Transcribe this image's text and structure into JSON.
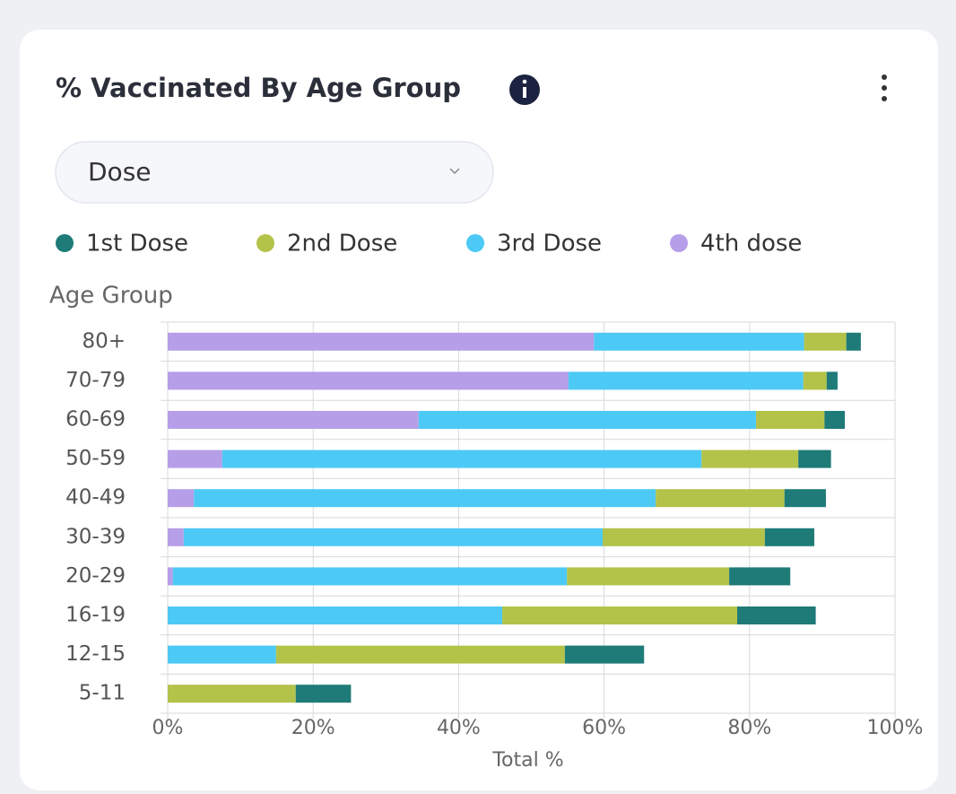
{
  "card": {
    "title": "% Vaccinated By Age Group",
    "dropdown": "Dose"
  },
  "chart_data": {
    "type": "bar",
    "orientation": "horizontal",
    "stacked": true,
    "y_axis_title": "Age Group",
    "x_axis_title": "Total %",
    "categories": [
      "80+",
      "70-79",
      "60-69",
      "50-59",
      "40-49",
      "30-39",
      "20-29",
      "16-19",
      "12-15",
      "5-11"
    ],
    "series": [
      {
        "name": "1st Dose",
        "color": "#1e7b78",
        "values": [
          2.0,
          1.5,
          2.8,
          4.5,
          5.7,
          6.8,
          8.4,
          10.8,
          10.9,
          7.6
        ]
      },
      {
        "name": "2nd Dose",
        "color": "#b3c34a",
        "values": [
          5.8,
          3.2,
          9.4,
          13.3,
          17.7,
          22.3,
          22.3,
          32.3,
          39.7,
          17.6
        ]
      },
      {
        "name": "3rd Dose",
        "color": "#4dc9f6",
        "values": [
          28.9,
          32.3,
          46.4,
          65.9,
          63.5,
          57.6,
          54.2,
          46.0,
          14.9,
          0
        ]
      },
      {
        "name": "4th dose",
        "color": "#b69ee8",
        "values": [
          58.6,
          55.1,
          34.5,
          7.5,
          3.6,
          2.2,
          0.7,
          0,
          0,
          0
        ]
      }
    ],
    "xlim": [
      0,
      100
    ],
    "xticks": [
      {
        "value": 0,
        "label": "0%"
      },
      {
        "value": 20,
        "label": "20%"
      },
      {
        "value": 40,
        "label": "40%"
      },
      {
        "value": 60,
        "label": "60%"
      },
      {
        "value": 80,
        "label": "80%"
      },
      {
        "value": 100,
        "label": "100%"
      }
    ],
    "grid": true
  }
}
